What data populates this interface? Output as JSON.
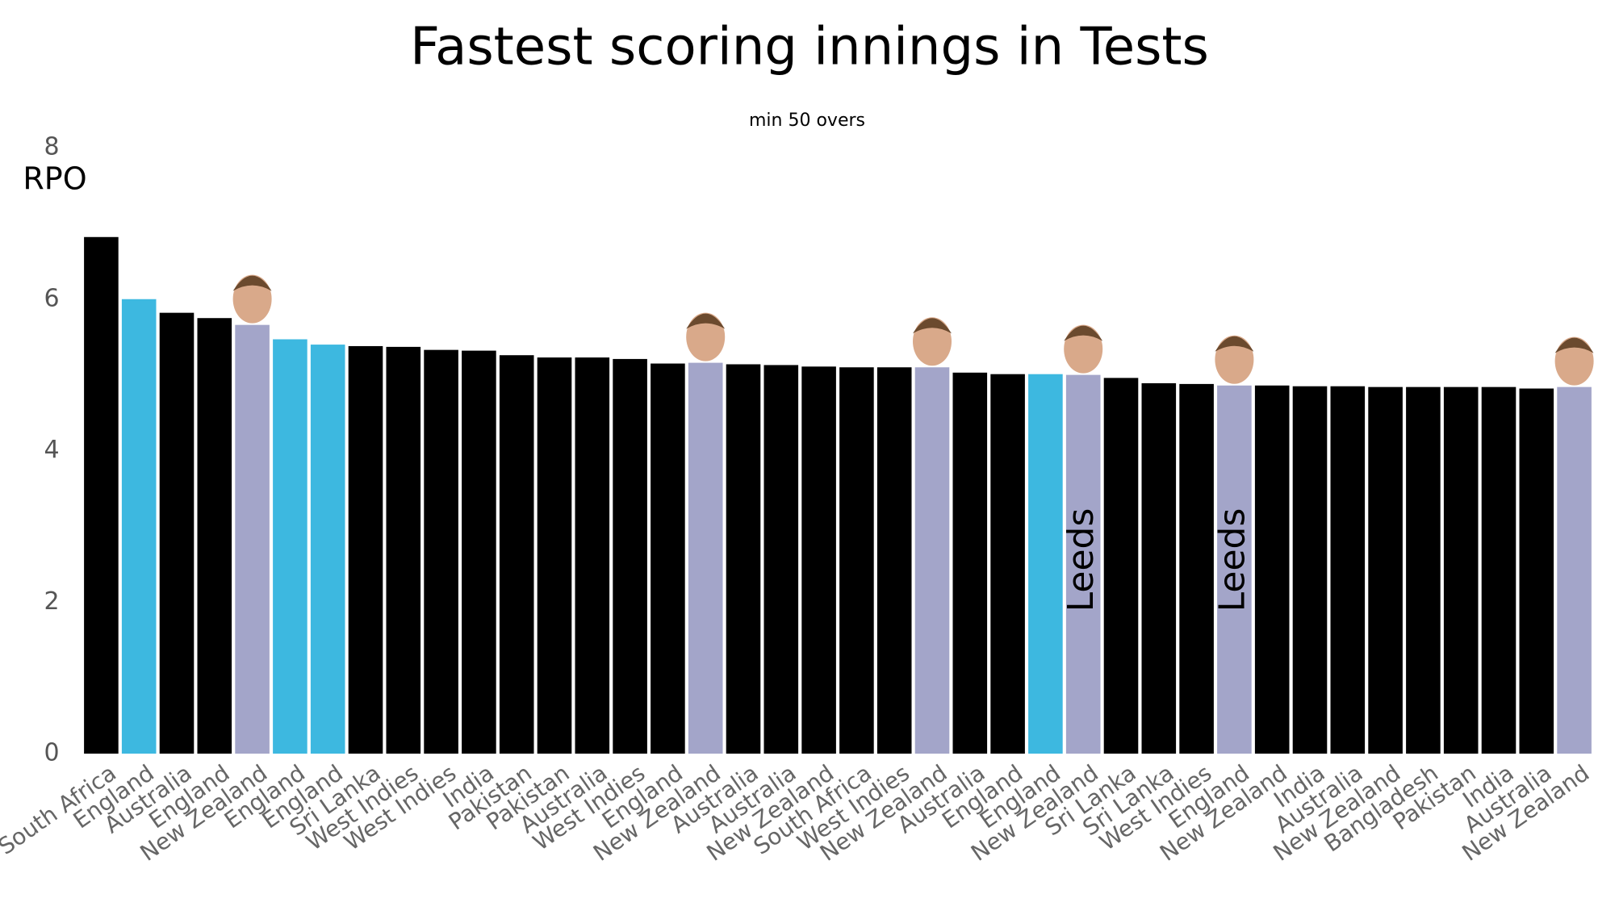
{
  "chart_data": {
    "type": "bar",
    "title": "Fastest scoring innings in Tests",
    "subtitle": "min 50 overs",
    "y_label": "RPO",
    "categories": [
      "South Africa",
      "England",
      "Australia",
      "England",
      "New Zealand",
      "England",
      "England",
      "Sri Lanka",
      "West Indies",
      "West Indies",
      "India",
      "Pakistan",
      "Pakistan",
      "Australia",
      "West Indies",
      "England",
      "New Zealand",
      "Australia",
      "Australia",
      "New Zealand",
      "South Africa",
      "West Indies",
      "New Zealand",
      "Australia",
      "England",
      "England",
      "New Zealand",
      "Sri Lanka",
      "Sri Lanka",
      "West Indies",
      "England",
      "New Zealand",
      "India",
      "Australia",
      "New Zealand",
      "Bangladesh",
      "Pakistan",
      "India",
      "Australia",
      "New Zealand"
    ],
    "values": [
      6.82,
      6.0,
      5.82,
      5.75,
      5.66,
      5.47,
      5.4,
      5.38,
      5.37,
      5.33,
      5.32,
      5.26,
      5.23,
      5.23,
      5.21,
      5.15,
      5.16,
      5.14,
      5.13,
      5.11,
      5.1,
      5.1,
      5.1,
      5.03,
      5.01,
      5.01,
      5.0,
      4.96,
      4.89,
      4.88,
      4.86,
      4.86,
      4.85,
      4.85,
      4.84,
      4.84,
      4.84,
      4.84,
      4.82,
      4.84
    ],
    "colors": [
      "#000000",
      "#3db8e0",
      "#000000",
      "#000000",
      "#a3a5c9",
      "#3db8e0",
      "#3db8e0",
      "#000000",
      "#000000",
      "#000000",
      "#000000",
      "#000000",
      "#000000",
      "#000000",
      "#000000",
      "#000000",
      "#a3a5c9",
      "#000000",
      "#000000",
      "#000000",
      "#000000",
      "#000000",
      "#a3a5c9",
      "#000000",
      "#000000",
      "#3db8e0",
      "#a3a5c9",
      "#000000",
      "#000000",
      "#000000",
      "#a3a5c9",
      "#000000",
      "#000000",
      "#000000",
      "#000000",
      "#000000",
      "#000000",
      "#000000",
      "#000000",
      "#a3a5c9"
    ],
    "bar_labels": [
      null,
      null,
      null,
      null,
      null,
      null,
      null,
      null,
      null,
      null,
      null,
      null,
      null,
      null,
      null,
      null,
      null,
      null,
      null,
      null,
      null,
      null,
      null,
      null,
      null,
      null,
      "Leeds",
      null,
      null,
      null,
      "Leeds",
      null,
      null,
      null,
      null,
      null,
      null,
      null,
      null,
      null
    ],
    "ylim": [
      0,
      8
    ],
    "yticks": [
      0,
      2,
      4,
      6,
      8
    ],
    "grid": false
  }
}
